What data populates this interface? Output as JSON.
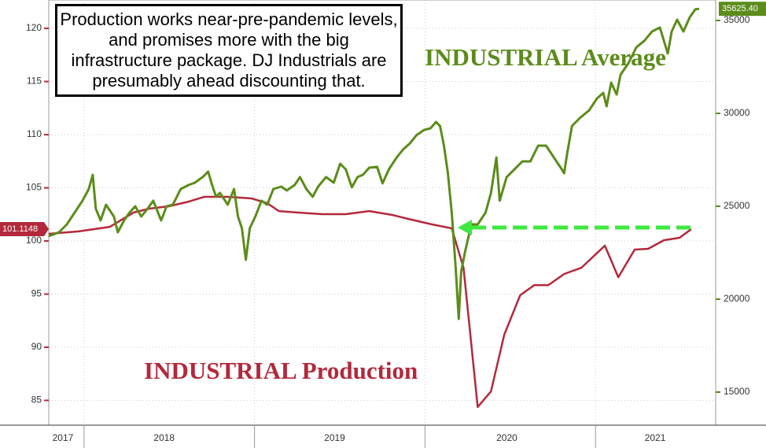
{
  "chart_data": {
    "type": "line",
    "annotation": "Production works near-pre-pandemic levels, and promises more with the big infrastructure package. DJ Industrials are presumably ahead discounting that.",
    "xlim": [
      2017.793,
      2021.705
    ],
    "xticks": [
      {
        "value": 2017.876,
        "label": "2017"
      },
      {
        "value": 2018.47,
        "label": "2018"
      },
      {
        "value": 2019.47,
        "label": "2019"
      },
      {
        "value": 2020.48,
        "label": "2020"
      },
      {
        "value": 2021.35,
        "label": "2021"
      }
    ],
    "x_separators": [
      2018,
      2019,
      2020,
      2021
    ],
    "ylim": [
      82.67,
      122.67
    ],
    "yticks": [
      85,
      90,
      95,
      100,
      105,
      110,
      115,
      120
    ],
    "y2lim": [
      13220,
      36100
    ],
    "y2ticks": [
      15000,
      20000,
      25000,
      30000,
      35000
    ],
    "grid": true,
    "series": [
      {
        "name": "INDUSTRIAL Production",
        "color": "#b3283b",
        "x": [
          2017.793,
          2017.968,
          2018.152,
          2018.29,
          2018.382,
          2018.498,
          2018.613,
          2018.705,
          2018.843,
          2018.982,
          2019.074,
          2019.143,
          2019.258,
          2019.396,
          2019.535,
          2019.673,
          2019.811,
          2019.903,
          2020.041,
          2020.157,
          2020.226,
          2020.309,
          2020.387,
          2020.465,
          2020.558,
          2020.641,
          2020.724,
          2020.816,
          2020.917,
          2021.055,
          2021.134,
          2021.23,
          2021.309,
          2021.401,
          2021.493,
          2021.562
        ],
        "values": [
          100.67,
          100.9,
          101.33,
          102.67,
          103.04,
          103.26,
          103.7,
          104.15,
          104.15,
          104.0,
          103.56,
          102.81,
          102.67,
          102.52,
          102.52,
          102.81,
          102.44,
          102.07,
          101.56,
          101.19,
          97.48,
          84.37,
          85.85,
          91.19,
          94.89,
          95.85,
          95.85,
          96.89,
          97.48,
          99.56,
          96.59,
          99.19,
          99.26,
          100.07,
          100.3,
          101.1148
        ]
      },
      {
        "name": "INDUSTRIAL Average",
        "color": "#5b8c1a",
        "axis": "y2",
        "end_label": "35625.40",
        "x": [
          2017.793,
          2017.853,
          2017.899,
          2017.945,
          2017.991,
          2018.028,
          2018.051,
          2018.069,
          2018.097,
          2018.129,
          2018.175,
          2018.198,
          2018.235,
          2018.267,
          2018.3,
          2018.336,
          2018.373,
          2018.406,
          2018.452,
          2018.484,
          2018.521,
          2018.567,
          2018.613,
          2018.65,
          2018.696,
          2018.728,
          2018.751,
          2018.774,
          2018.797,
          2018.843,
          2018.88,
          2018.903,
          2018.926,
          2018.949,
          2018.972,
          2019.005,
          2019.041,
          2019.074,
          2019.111,
          2019.157,
          2019.189,
          2019.235,
          2019.267,
          2019.304,
          2019.341,
          2019.373,
          2019.419,
          2019.465,
          2019.502,
          2019.535,
          2019.571,
          2019.604,
          2019.636,
          2019.673,
          2019.719,
          2019.751,
          2019.788,
          2019.834,
          2019.871,
          2019.912,
          2019.949,
          2019.995,
          2020.032,
          2020.065,
          2020.088,
          2020.111,
          2020.134,
          2020.157,
          2020.18,
          2020.198,
          2020.212,
          2020.235,
          2020.272,
          2020.309,
          2020.355,
          2020.387,
          2020.419,
          2020.438,
          2020.479,
          2020.525,
          2020.571,
          2020.618,
          2020.664,
          2020.71,
          2020.756,
          2020.802,
          2020.816,
          2020.834,
          2020.862,
          2020.908,
          2020.963,
          2021.009,
          2021.046,
          2021.065,
          2021.092,
          2021.124,
          2021.147,
          2021.194,
          2021.24,
          2021.286,
          2021.332,
          2021.378,
          2021.424,
          2021.447,
          2021.479,
          2021.516,
          2021.553,
          2021.585,
          2021.608
        ],
        "values": [
          23390,
          23600,
          24025,
          24660,
          25300,
          25930,
          26695,
          24870,
          24240,
          25085,
          24450,
          23600,
          24240,
          24660,
          25000,
          24450,
          24870,
          25300,
          24240,
          25000,
          25085,
          25930,
          26145,
          26270,
          26570,
          26865,
          26145,
          25510,
          25720,
          25085,
          25930,
          24450,
          23815,
          22120,
          23815,
          24450,
          25300,
          25085,
          25930,
          26060,
          25850,
          26145,
          26570,
          25930,
          25510,
          26060,
          26570,
          26270,
          27290,
          26990,
          26020,
          26570,
          26695,
          27075,
          27120,
          26230,
          26990,
          27625,
          28050,
          28390,
          28815,
          29110,
          29195,
          29535,
          29320,
          28260,
          26780,
          24660,
          21695,
          18940,
          21485,
          22545,
          24025,
          24025,
          24660,
          25720,
          27625,
          25300,
          26570,
          26990,
          27415,
          27415,
          28260,
          28260,
          27625,
          26990,
          26780,
          27840,
          29320,
          29745,
          30170,
          30805,
          31100,
          30380,
          31650,
          31015,
          32075,
          32710,
          33560,
          33900,
          34405,
          34620,
          33220,
          34405,
          35040,
          34405,
          35170,
          35595,
          35625.4
        ]
      }
    ]
  }
}
